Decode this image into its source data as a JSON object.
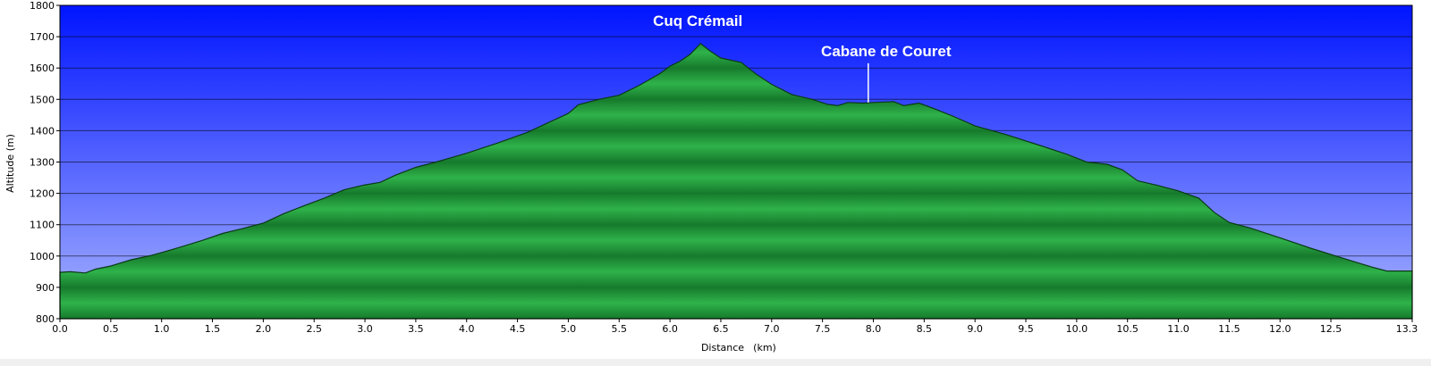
{
  "chart_data": {
    "type": "area",
    "xlabel": "Distance",
    "xunit": "(km)",
    "ylabel": "Altitude (m)",
    "xlim": [
      0,
      13.3
    ],
    "ylim": [
      800,
      1800
    ],
    "xticks": [
      "0.0",
      "0.5",
      "1.0",
      "1.5",
      "2.0",
      "2.5",
      "3.0",
      "3.5",
      "4.0",
      "4.5",
      "5.0",
      "5.5",
      "6.0",
      "6.5",
      "7.0",
      "7.5",
      "8.0",
      "8.5",
      "9.0",
      "9.5",
      "10.0",
      "10.5",
      "11.0",
      "11.5",
      "12.0",
      "12.5",
      "13.3"
    ],
    "xtick_values": [
      0,
      0.5,
      1,
      1.5,
      2,
      2.5,
      3,
      3.5,
      4,
      4.5,
      5,
      5.5,
      6,
      6.5,
      7,
      7.5,
      8,
      8.5,
      9,
      9.5,
      10,
      10.5,
      11,
      11.5,
      12,
      12.5,
      13.3
    ],
    "yticks": [
      "800",
      "900",
      "1000",
      "1100",
      "1200",
      "1300",
      "1400",
      "1500",
      "1600",
      "1700",
      "1800"
    ],
    "ytick_values": [
      800,
      900,
      1000,
      1100,
      1200,
      1300,
      1400,
      1500,
      1600,
      1700,
      1800
    ],
    "grid": true,
    "colors": {
      "sky_top": "#0014ff",
      "sky_bottom": "#a8b4ff",
      "fill_light": "#2fb24a",
      "fill_dark": "#167a2c",
      "outline": "#0a3a14",
      "annotation": "#ffffff"
    },
    "profile": [
      [
        0.0,
        948
      ],
      [
        0.1,
        950
      ],
      [
        0.25,
        946
      ],
      [
        0.35,
        958
      ],
      [
        0.5,
        968
      ],
      [
        0.7,
        988
      ],
      [
        0.9,
        1002
      ],
      [
        1.0,
        1011
      ],
      [
        1.2,
        1030
      ],
      [
        1.4,
        1050
      ],
      [
        1.6,
        1072
      ],
      [
        1.8,
        1088
      ],
      [
        2.0,
        1105
      ],
      [
        2.2,
        1135
      ],
      [
        2.4,
        1160
      ],
      [
        2.6,
        1185
      ],
      [
        2.8,
        1212
      ],
      [
        3.0,
        1227
      ],
      [
        3.15,
        1235
      ],
      [
        3.3,
        1258
      ],
      [
        3.5,
        1283
      ],
      [
        3.7,
        1300
      ],
      [
        4.0,
        1328
      ],
      [
        4.3,
        1360
      ],
      [
        4.6,
        1395
      ],
      [
        4.8,
        1425
      ],
      [
        5.0,
        1455
      ],
      [
        5.1,
        1483
      ],
      [
        5.3,
        1500
      ],
      [
        5.5,
        1513
      ],
      [
        5.7,
        1545
      ],
      [
        5.9,
        1582
      ],
      [
        6.0,
        1606
      ],
      [
        6.1,
        1622
      ],
      [
        6.2,
        1644
      ],
      [
        6.3,
        1678
      ],
      [
        6.4,
        1653
      ],
      [
        6.5,
        1632
      ],
      [
        6.7,
        1618
      ],
      [
        6.85,
        1580
      ],
      [
        7.0,
        1548
      ],
      [
        7.2,
        1515
      ],
      [
        7.4,
        1500
      ],
      [
        7.55,
        1484
      ],
      [
        7.65,
        1480
      ],
      [
        7.75,
        1490
      ],
      [
        7.9,
        1488
      ],
      [
        8.0,
        1490
      ],
      [
        8.2,
        1493
      ],
      [
        8.3,
        1480
      ],
      [
        8.45,
        1488
      ],
      [
        8.6,
        1470
      ],
      [
        8.8,
        1444
      ],
      [
        9.0,
        1415
      ],
      [
        9.3,
        1388
      ],
      [
        9.6,
        1357
      ],
      [
        9.9,
        1325
      ],
      [
        10.1,
        1300
      ],
      [
        10.3,
        1293
      ],
      [
        10.45,
        1275
      ],
      [
        10.6,
        1240
      ],
      [
        10.8,
        1225
      ],
      [
        11.0,
        1208
      ],
      [
        11.2,
        1185
      ],
      [
        11.35,
        1140
      ],
      [
        11.5,
        1107
      ],
      [
        11.7,
        1090
      ],
      [
        12.0,
        1058
      ],
      [
        12.3,
        1025
      ],
      [
        12.6,
        995
      ],
      [
        12.9,
        965
      ],
      [
        13.05,
        952
      ],
      [
        13.3,
        952
      ]
    ],
    "annotations": [
      {
        "text": "Cuq Crémail",
        "x": 6.3,
        "y": 1678,
        "marker": false
      },
      {
        "text": "Cabane de Couret",
        "x": 7.95,
        "y": 1490,
        "marker": true
      }
    ]
  }
}
